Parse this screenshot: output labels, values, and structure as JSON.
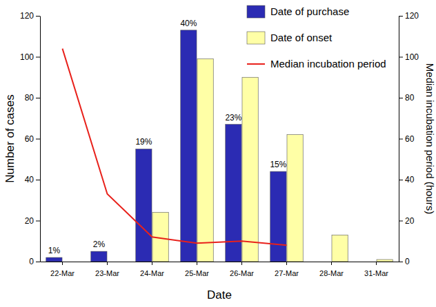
{
  "chart_data": {
    "type": "bar",
    "categories": [
      "22-Mar",
      "23-Mar",
      "24-Mar",
      "25-Mar",
      "26-Mar",
      "27-Mar",
      "28-Mar",
      "31-Mar"
    ],
    "series": [
      {
        "name": "Date of purchase",
        "type": "bar",
        "color": "#2b2bb3",
        "values": [
          2,
          5,
          55,
          113,
          67,
          44,
          null,
          null
        ],
        "percent_labels": [
          "1%",
          "2%",
          "19%",
          "40%",
          "23%",
          "15%",
          null,
          null
        ]
      },
      {
        "name": "Date of onset",
        "type": "bar",
        "color": "#ffffa6",
        "values": [
          null,
          null,
          24,
          99,
          90,
          62,
          13,
          1
        ]
      },
      {
        "name": "Median incubation period",
        "type": "line",
        "color": "#e8211b",
        "axis": "y2",
        "values": [
          104,
          33,
          12,
          9,
          10,
          8,
          null,
          null
        ]
      }
    ],
    "xlabel": "Date",
    "ylabel": "Number of cases",
    "y2label": "Median incubation period (hours)",
    "ylim": [
      0,
      120
    ],
    "yticks": [
      0,
      20,
      40,
      60,
      80,
      100,
      120
    ],
    "y2lim": [
      0,
      120
    ],
    "y2ticks": [
      0,
      20,
      40,
      60,
      80,
      100,
      120
    ],
    "legend": "top-right"
  }
}
